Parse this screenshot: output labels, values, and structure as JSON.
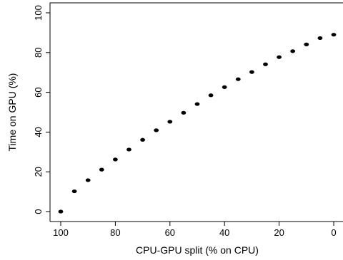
{
  "chart_data": {
    "type": "scatter",
    "title": "",
    "xlabel": "CPU-GPU split (% on CPU)",
    "ylabel": "Time on GPU (%)",
    "xlim": [
      100,
      0
    ],
    "ylim": [
      0,
      100
    ],
    "x_reversed": true,
    "xticks": [
      100,
      80,
      60,
      40,
      20,
      0
    ],
    "yticks": [
      0,
      20,
      40,
      60,
      80,
      100
    ],
    "grid": false,
    "legend": "none",
    "series": [
      {
        "x": [
          100,
          95,
          90,
          85,
          80,
          75,
          70,
          65,
          60,
          55,
          50,
          45,
          40,
          35,
          30,
          25,
          20,
          15,
          10,
          5,
          0
        ],
        "y": [
          0,
          10.2,
          15.8,
          21.1,
          26.2,
          31.2,
          36.1,
          40.9,
          45.2,
          49.7,
          54.1,
          58.5,
          62.6,
          66.6,
          70.2,
          74.1,
          77.7,
          80.7,
          84.1,
          87.3,
          89.0
        ]
      }
    ]
  }
}
